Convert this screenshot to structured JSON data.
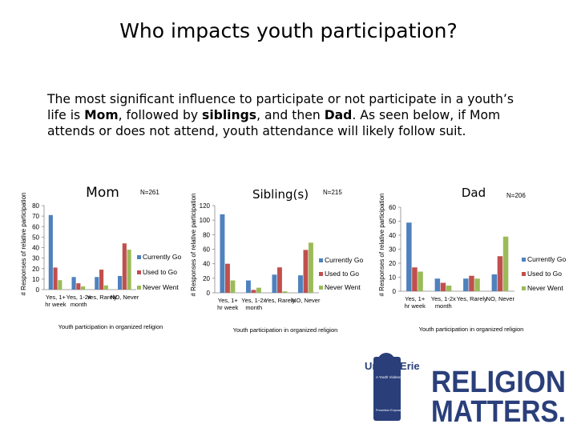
{
  "title": "Who impacts youth participation?",
  "description": {
    "part1": "The most significant influence to participate or not participate in a youth’s life is ",
    "mom": "Mom",
    "part2": ", followed by ",
    "siblings": "siblings",
    "part3": ", and then ",
    "dad": "Dad",
    "part4": ".  As seen below, if Mom attends or does not attend, youth attendance will likely follow suit."
  },
  "colors": {
    "currently_go": "#4f81bd",
    "used_to_go": "#c0504d",
    "never_went": "#9bbb59"
  },
  "logo": {
    "brand_top": "UnifiedErie",
    "tagline": "A Youth Violence Reduction Initiative",
    "big1": "RELIGION",
    "big2": "MATTERS.",
    "small": "Prevention Empowerment Recovery"
  },
  "chart_data": [
    {
      "type": "bar",
      "title": "Mom",
      "note": "N=261",
      "ylabel": "# Responses of relative participation",
      "xlabel": "Youth participation in organized religion",
      "categories": [
        "Yes, 1+ hr week",
        "Yes, 1-2x month",
        "Yes, Rarely",
        "NO, Never"
      ],
      "series": [
        {
          "name": "Currently Go",
          "values": [
            71,
            12,
            12,
            13
          ]
        },
        {
          "name": "Used to Go",
          "values": [
            21,
            6,
            19,
            44
          ]
        },
        {
          "name": "Never Went",
          "values": [
            9,
            3,
            4,
            38
          ]
        }
      ],
      "ylim": [
        0,
        80
      ],
      "ystep": 10
    },
    {
      "type": "bar",
      "title": "Sibling(s)",
      "note": "N=215",
      "ylabel": "# Responses of relative participation",
      "xlabel": "Youth participation in organized religion",
      "categories": [
        "Yes, 1+ hr week",
        "Yes, 1-2x month",
        "Yes, Rarely",
        "NO, Never"
      ],
      "series": [
        {
          "name": "Currently Go",
          "values": [
            108,
            17,
            25,
            24
          ]
        },
        {
          "name": "Used to Go",
          "values": [
            40,
            4,
            35,
            59
          ]
        },
        {
          "name": "Never Went",
          "values": [
            17,
            7,
            2,
            69
          ]
        }
      ],
      "ylim": [
        0,
        120
      ],
      "ystep": 20
    },
    {
      "type": "bar",
      "title": "Dad",
      "note": "N=206",
      "ylabel": "# Responses of relative participation",
      "xlabel": "Youth participation in organized religion",
      "categories": [
        "Yes, 1+ hr week",
        "Yes, 1-2x month",
        "Yes, Rarely",
        "NO, Never"
      ],
      "series": [
        {
          "name": "Currently Go",
          "values": [
            49,
            9,
            9,
            12
          ]
        },
        {
          "name": "Used to Go",
          "values": [
            17,
            6,
            11,
            25
          ]
        },
        {
          "name": "Never Went",
          "values": [
            14,
            4,
            9,
            39
          ]
        }
      ],
      "ylim": [
        0,
        60
      ],
      "ystep": 10
    }
  ]
}
